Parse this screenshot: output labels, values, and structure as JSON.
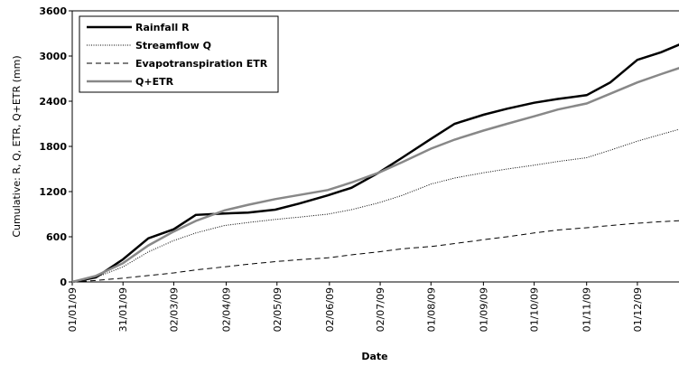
{
  "chart_data": {
    "type": "line",
    "x_label": "Date",
    "y_label": "Cumulative: R, Q, ETR, Q+ETR (mm)",
    "x": [
      "2009-01-01",
      "2009-01-15",
      "2009-01-31",
      "2009-02-15",
      "2009-03-02",
      "2009-03-15",
      "2009-04-01",
      "2009-04-15",
      "2009-05-01",
      "2009-05-15",
      "2009-06-01",
      "2009-06-15",
      "2009-07-01",
      "2009-07-15",
      "2009-08-01",
      "2009-08-15",
      "2009-09-01",
      "2009-09-15",
      "2009-10-01",
      "2009-10-15",
      "2009-11-01",
      "2009-11-15",
      "2009-12-01",
      "2009-12-15",
      "2009-12-31"
    ],
    "series": [
      {
        "name": "Rainfall R",
        "color": "#000000",
        "width": 2.5,
        "dash": "none",
        "values": [
          0,
          60,
          300,
          580,
          700,
          890,
          910,
          920,
          960,
          1040,
          1150,
          1250,
          1450,
          1650,
          1900,
          2100,
          2220,
          2300,
          2380,
          2430,
          2480,
          2650,
          2950,
          3050,
          3200
        ]
      },
      {
        "name": "Streamflow Q",
        "color": "#000000",
        "width": 1,
        "dash": "1 1.5",
        "values": [
          0,
          60,
          200,
          400,
          550,
          650,
          750,
          790,
          830,
          860,
          900,
          960,
          1050,
          1150,
          1300,
          1380,
          1450,
          1500,
          1550,
          1600,
          1650,
          1750,
          1870,
          1960,
          2060
        ]
      },
      {
        "name": "Evapotranspiration ETR",
        "color": "#000000",
        "width": 1,
        "dash": "6 4",
        "values": [
          0,
          20,
          50,
          85,
          120,
          160,
          200,
          235,
          270,
          295,
          320,
          360,
          400,
          440,
          470,
          510,
          560,
          600,
          650,
          690,
          720,
          750,
          780,
          800,
          820
        ]
      },
      {
        "name": "Q+ETR",
        "color": "#888888",
        "width": 2.5,
        "dash": "none",
        "values": [
          0,
          80,
          250,
          485,
          670,
          810,
          950,
          1025,
          1100,
          1155,
          1220,
          1320,
          1450,
          1590,
          1770,
          1890,
          2010,
          2100,
          2200,
          2290,
          2370,
          2500,
          2650,
          2760,
          2880
        ]
      }
    ],
    "xlim": [
      "2009-01-01",
      "2009-12-31"
    ],
    "xticks": [
      {
        "value": "2009-01-01",
        "label": "01/01/09"
      },
      {
        "value": "2009-01-31",
        "label": "31/01/09"
      },
      {
        "value": "2009-03-02",
        "label": "02/03/09"
      },
      {
        "value": "2009-04-02",
        "label": "02/04/09"
      },
      {
        "value": "2009-05-02",
        "label": "02/05/09"
      },
      {
        "value": "2009-06-02",
        "label": "02/06/09"
      },
      {
        "value": "2009-07-02",
        "label": "02/07/09"
      },
      {
        "value": "2009-08-01",
        "label": "01/08/09"
      },
      {
        "value": "2009-09-01",
        "label": "01/09/09"
      },
      {
        "value": "2009-10-01",
        "label": "01/10/09"
      },
      {
        "value": "2009-11-01",
        "label": "01/11/09"
      },
      {
        "value": "2009-12-01",
        "label": "01/12/09"
      }
    ],
    "ylim": [
      0,
      3600
    ],
    "yticks": [
      0,
      600,
      1200,
      1800,
      2400,
      3000,
      3600
    ],
    "legend": "upper left"
  }
}
